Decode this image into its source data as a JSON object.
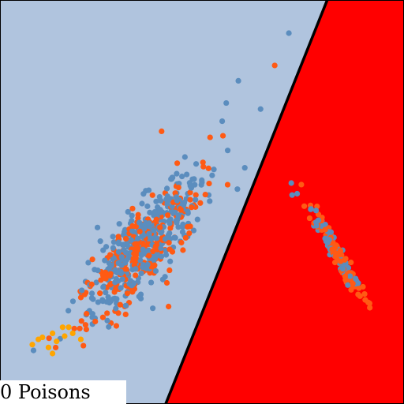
{
  "chart_data": {
    "type": "scatter",
    "title": "",
    "xlabel": "",
    "ylabel": "",
    "grid": false,
    "xlim": [
      0,
      1
    ],
    "ylim": [
      0,
      1
    ],
    "annotation": "0 Poisons",
    "regions": {
      "left_color": "#b0c4de",
      "right_color": "#ff0000",
      "boundary_color": "#000000",
      "boundary": [
        [
          0.81,
          1.0
        ],
        [
          0.41,
          0.0
        ]
      ]
    },
    "series": [
      {
        "color": "#5b8dbe",
        "clusters": [
          {
            "center": [
              0.36,
              0.4
            ],
            "count": 380,
            "spread_along": 0.11,
            "spread_across": 0.035,
            "angle_deg": 50
          },
          {
            "center": [
              0.82,
              0.39
            ],
            "count": 70,
            "spread_along": 0.07,
            "spread_across": 0.008,
            "angle_deg": -60
          }
        ],
        "points": [
          [
            0.715,
            0.918
          ],
          [
            0.59,
            0.8
          ],
          [
            0.645,
            0.73
          ],
          [
            0.56,
            0.745
          ],
          [
            0.55,
            0.7
          ]
        ]
      },
      {
        "color": "#ff5a14",
        "clusters": [
          {
            "center": [
              0.35,
              0.38
            ],
            "count": 260,
            "spread_along": 0.11,
            "spread_across": 0.035,
            "angle_deg": 50
          },
          {
            "center": [
              0.83,
              0.38
            ],
            "count": 90,
            "spread_along": 0.07,
            "spread_across": 0.008,
            "angle_deg": -60
          }
        ],
        "points": [
          [
            0.68,
            0.838
          ],
          [
            0.4,
            0.675
          ],
          [
            0.52,
            0.66
          ]
        ]
      },
      {
        "color": "#ffa500",
        "clusters": [],
        "points": [
          [
            0.08,
            0.147
          ],
          [
            0.105,
            0.165
          ],
          [
            0.13,
            0.175
          ],
          [
            0.155,
            0.19
          ],
          [
            0.18,
            0.175
          ],
          [
            0.2,
            0.16
          ],
          [
            0.14,
            0.155
          ],
          [
            0.12,
            0.14
          ],
          [
            0.095,
            0.16
          ],
          [
            0.16,
            0.168
          ],
          [
            0.13,
            0.125
          ],
          [
            0.17,
            0.19
          ]
        ]
      }
    ]
  }
}
